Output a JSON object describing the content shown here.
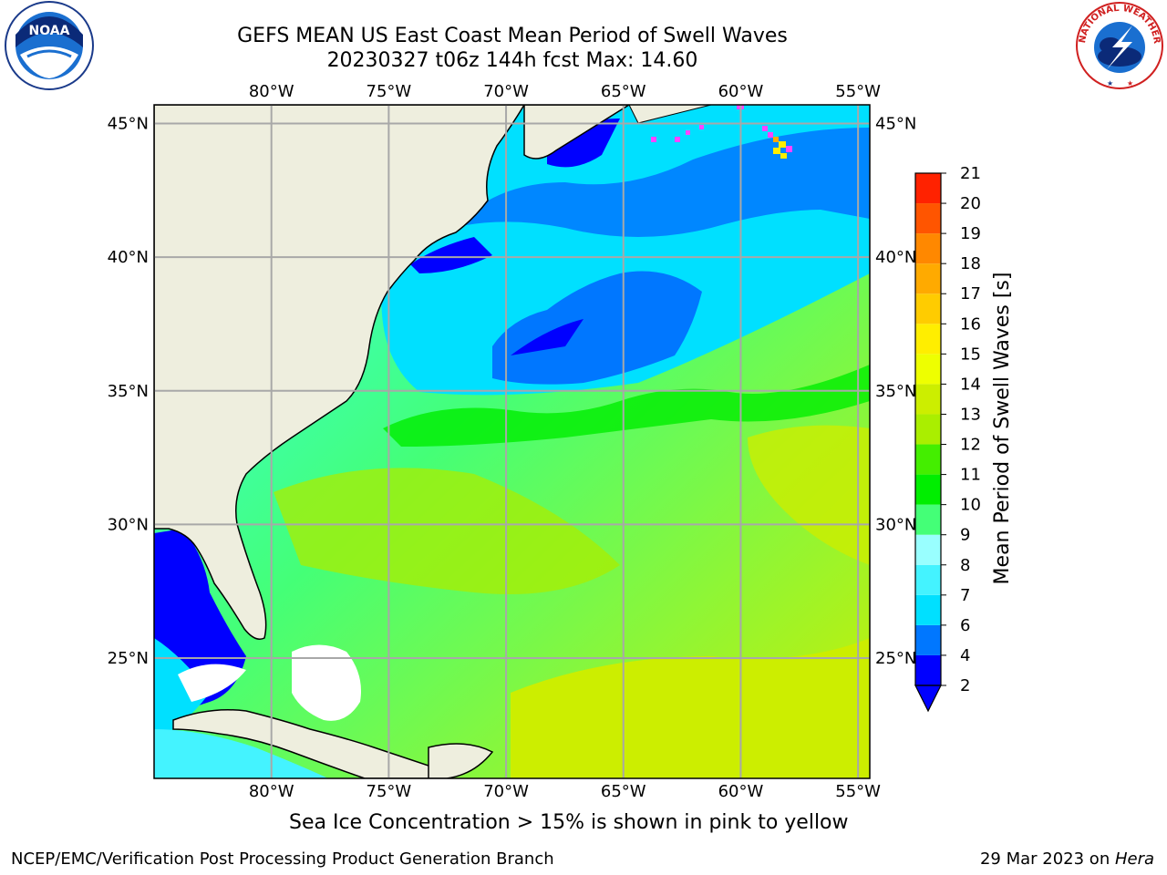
{
  "header": {
    "title_line1": "GEFS MEAN US East Coast Mean Period of Swell Waves",
    "title_line2": "20230327 t06z 144h fcst   Max: 14.60"
  },
  "logos": {
    "left": "NOAA",
    "right_ring_text": "NATIONAL WEATHER SERVICE"
  },
  "map": {
    "lon_labels": [
      "80°W",
      "75°W",
      "70°W",
      "65°W",
      "60°W",
      "55°W"
    ],
    "lat_labels": [
      "45°N",
      "40°N",
      "35°N",
      "30°N",
      "25°N"
    ],
    "lon_values": [
      -80,
      -75,
      -70,
      -65,
      -60,
      -55
    ],
    "lat_values": [
      45,
      40,
      35,
      30,
      25
    ],
    "extent": {
      "lon": [
        -85,
        -54.5
      ],
      "lat": [
        20.5,
        45.7
      ]
    },
    "grid": true,
    "land_color": "#eeeede",
    "no_data_color": "#ffffff"
  },
  "colorbar": {
    "label": "Mean Period of Swell Waves [s]",
    "ticks": [
      "2",
      "4",
      "6",
      "7",
      "8",
      "9",
      "10",
      "11",
      "12",
      "13",
      "14",
      "15",
      "16",
      "17",
      "18",
      "19",
      "20",
      "21"
    ],
    "colors": [
      "#0000ff",
      "#0077ff",
      "#00e0ff",
      "#44f3ff",
      "#99ffff",
      "#44ff77",
      "#00ee00",
      "#44ee00",
      "#aaee00",
      "#ccee00",
      "#eeff00",
      "#ffee00",
      "#ffcc00",
      "#ffaa00",
      "#ff8800",
      "#ff5500",
      "#ff2200"
    ],
    "under_color": "#0000ff",
    "extend": "min"
  },
  "notes": {
    "sea_ice": "Sea Ice Concentration > 15% is shown in pink to yellow"
  },
  "footer": {
    "left": "NCEP/EMC/Verification Post Processing Product Generation Branch",
    "date": "29 Mar 2023 on ",
    "host": "Hera"
  }
}
